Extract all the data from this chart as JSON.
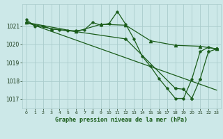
{
  "background_color": "#cce8e8",
  "grid_color": "#aacccc",
  "line_color": "#1a5c1a",
  "title": "Graphe pression niveau de la mer (hPa)",
  "xlim": [
    -0.5,
    23.5
  ],
  "ylim": [
    1016.5,
    1022.2
  ],
  "yticks": [
    1017,
    1018,
    1019,
    1020,
    1021
  ],
  "xticks": [
    0,
    1,
    2,
    3,
    4,
    5,
    6,
    7,
    8,
    9,
    10,
    11,
    12,
    13,
    14,
    15,
    16,
    17,
    18,
    19,
    20,
    21,
    22,
    23
  ],
  "series": [
    {
      "x": [
        0,
        1,
        2,
        3,
        4,
        5,
        6,
        7,
        8,
        9,
        10,
        11,
        12,
        13,
        14,
        15,
        16,
        17,
        18,
        19,
        20,
        21,
        22,
        23
      ],
      "y": [
        1021.35,
        1021.0,
        1021.0,
        1020.85,
        1020.8,
        1020.75,
        1020.75,
        1020.8,
        1021.2,
        1021.05,
        1021.15,
        1021.8,
        1021.1,
        1020.3,
        1019.35,
        1018.8,
        1018.15,
        1017.6,
        1017.05,
        1017.05,
        1018.1,
        1019.6,
        1019.85,
        1019.75
      ],
      "marker": "o",
      "markersize": 2.5,
      "linewidth": 0.9,
      "linestyle": "-"
    },
    {
      "x": [
        0,
        3,
        6,
        9,
        12,
        15,
        18,
        21,
        23
      ],
      "y": [
        1021.2,
        1020.85,
        1020.7,
        1021.1,
        1021.05,
        1020.2,
        1019.95,
        1019.9,
        1019.75
      ],
      "marker": "^",
      "markersize": 3.5,
      "linewidth": 0.9,
      "linestyle": "-"
    },
    {
      "x": [
        0,
        23
      ],
      "y": [
        1021.2,
        1017.5
      ],
      "marker": "",
      "markersize": 0,
      "linewidth": 0.9,
      "linestyle": "-"
    },
    {
      "x": [
        0,
        6,
        12,
        18,
        19,
        20,
        21,
        22,
        23
      ],
      "y": [
        1021.2,
        1020.7,
        1020.3,
        1017.6,
        1017.55,
        1017.05,
        1018.1,
        1019.6,
        1019.75
      ],
      "marker": "P",
      "markersize": 3.0,
      "linewidth": 0.9,
      "linestyle": "-"
    }
  ]
}
